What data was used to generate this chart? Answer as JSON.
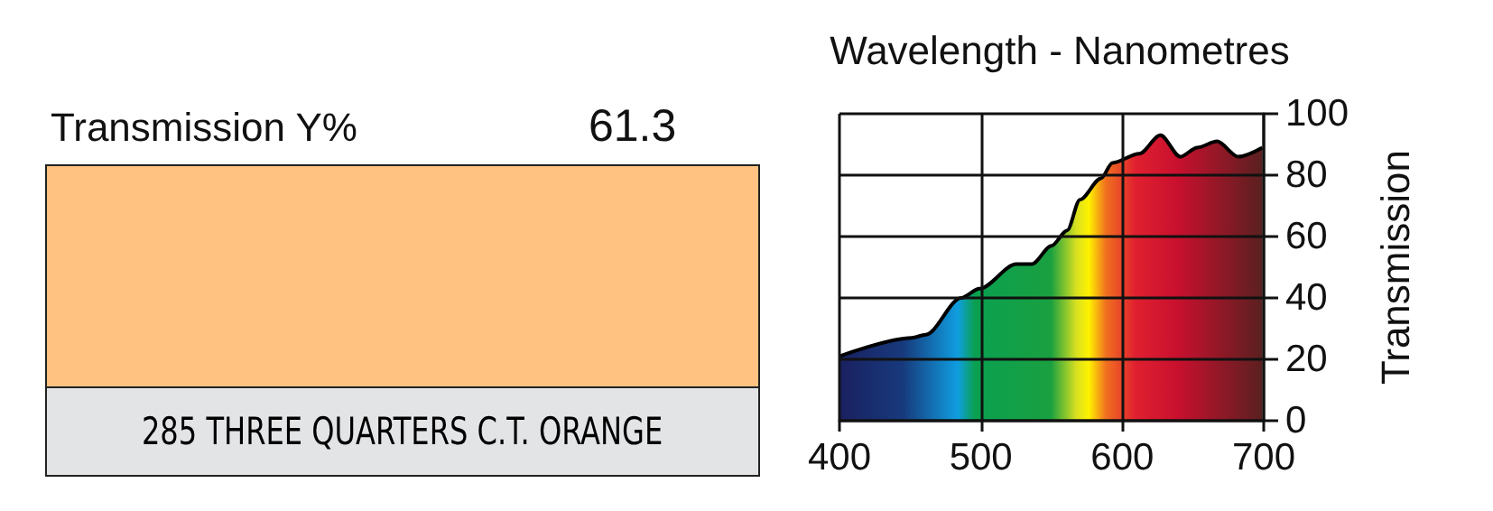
{
  "chart_data": {
    "type": "area",
    "xlabel": "Wavelength - Nanometres",
    "ylabel": "Transmission",
    "annotations": [
      "Transmission Y%",
      "61.3",
      "285 THREE QUARTERS C.T. ORANGE"
    ],
    "x": [
      400,
      451,
      461,
      486,
      499,
      525,
      536,
      550,
      561,
      570,
      585,
      593,
      612,
      627,
      641,
      653,
      667,
      682,
      699
    ],
    "series": [
      {
        "color": "#000000",
        "values": [
          21,
          27,
          28,
          40,
          43,
          51,
          51,
          57,
          62,
          72,
          79,
          84,
          87,
          93,
          86,
          89,
          91,
          86,
          89
        ]
      }
    ],
    "xlim": [
      400,
      700
    ],
    "xticks": [
      400,
      500,
      600,
      700
    ],
    "ylim": [
      0,
      100
    ],
    "yticks": [
      0,
      20,
      40,
      60,
      80,
      100
    ],
    "grid": true,
    "marker": "none"
  }
}
